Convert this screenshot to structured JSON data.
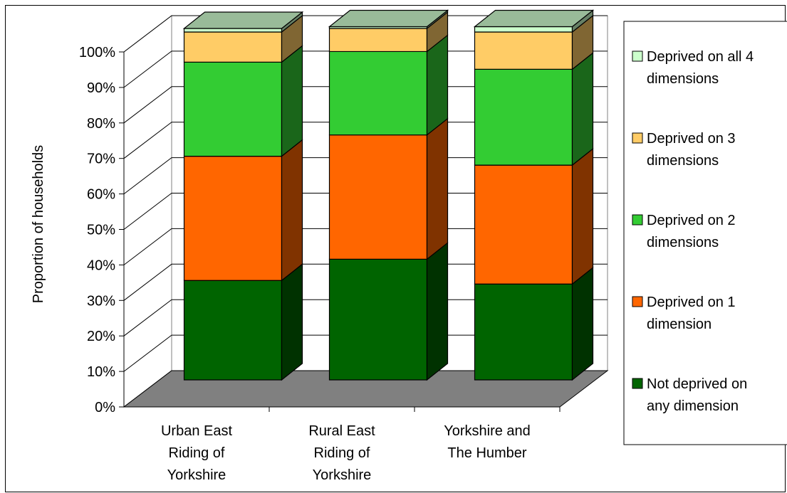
{
  "chart_data": {
    "type": "bar",
    "stacked": true,
    "three_d": true,
    "ylabel": "Proportion of households",
    "xlabel": "",
    "ylim": [
      0,
      100
    ],
    "y_ticks": [
      "0%",
      "10%",
      "20%",
      "30%",
      "40%",
      "50%",
      "60%",
      "70%",
      "80%",
      "90%",
      "100%"
    ],
    "grid": true,
    "legend_position": "right",
    "categories": [
      [
        "Urban East",
        "Riding of",
        "Yorkshire"
      ],
      [
        "Rural East",
        "Riding of",
        "Yorkshire"
      ],
      [
        "Yorkshire and",
        "The Humber"
      ]
    ],
    "series": [
      {
        "name": "Not deprived on any dimension",
        "legend_lines": [
          "Not deprived on",
          "any dimension"
        ],
        "values": [
          28,
          34,
          27
        ],
        "color": "#006400",
        "side_color": "#003200",
        "top_color": "#5a8f5a"
      },
      {
        "name": "Deprived on 1 dimension",
        "legend_lines": [
          "Deprived on 1",
          "dimension"
        ],
        "values": [
          35,
          35,
          33.5
        ],
        "color": "#ff6600",
        "side_color": "#803300",
        "top_color": "#ffa266"
      },
      {
        "name": "Deprived on 2 dimensions",
        "legend_lines": [
          "Deprived on 2",
          "dimensions"
        ],
        "values": [
          26.5,
          23.5,
          27
        ],
        "color": "#33cc33",
        "side_color": "#1a661a",
        "top_color": "#99e099"
      },
      {
        "name": "Deprived on 3 dimensions",
        "legend_lines": [
          "Deprived on 3",
          "dimensions"
        ],
        "values": [
          8.5,
          6.5,
          10.5
        ],
        "color": "#ffcc66",
        "side_color": "#806633",
        "top_color": "#ffe0a3"
      },
      {
        "name": "Deprived on all 4 dimensions",
        "legend_lines": [
          "Deprived on all 4",
          "dimensions"
        ],
        "values": [
          1,
          0.5,
          1.5
        ],
        "color": "#ccffcc",
        "side_color": "#668066",
        "top_color": "#e0ffe0"
      }
    ],
    "wall_color": "#ffffff",
    "floor_color": "#808080",
    "top_face_color": "#99bb99"
  }
}
